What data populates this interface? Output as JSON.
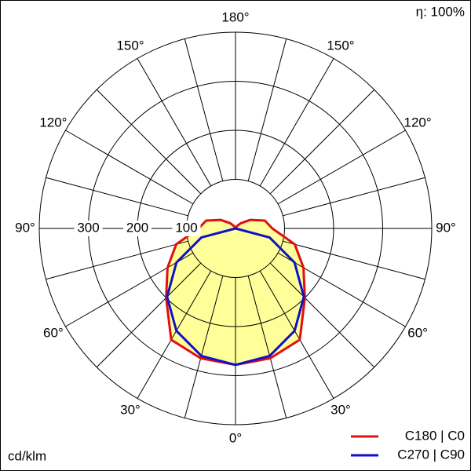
{
  "chart_data": {
    "type": "polar",
    "annotation": "η: 100%",
    "unit_label": "cd/klm",
    "x": [
      0,
      15,
      30,
      45,
      60,
      75,
      90,
      105,
      120,
      135,
      150,
      165,
      180
    ],
    "series": [
      {
        "name": "C180 | C0",
        "color": "#e01010",
        "fill": "#ffff99",
        "values": [
          278,
          274,
          262,
          200,
          160,
          125,
          75,
          62,
          35,
          15,
          5,
          2,
          0
        ]
      },
      {
        "name": "C270 | C90",
        "color": "#1010c8",
        "values": [
          278,
          269,
          241,
          197,
          139,
          72,
          0,
          0,
          0,
          0,
          0,
          0,
          0
        ]
      }
    ],
    "rlim": [
      0,
      400
    ],
    "rticks": [
      100,
      200,
      300
    ],
    "angle_ticks": [
      {
        "value": 0,
        "label": "0°"
      },
      {
        "value": 30,
        "label": "30°"
      },
      {
        "value": 60,
        "label": "60°"
      },
      {
        "value": 90,
        "label": "90°"
      },
      {
        "value": 120,
        "label": "120°"
      },
      {
        "value": 150,
        "label": "150°"
      },
      {
        "value": 180,
        "label": "180°"
      }
    ]
  }
}
